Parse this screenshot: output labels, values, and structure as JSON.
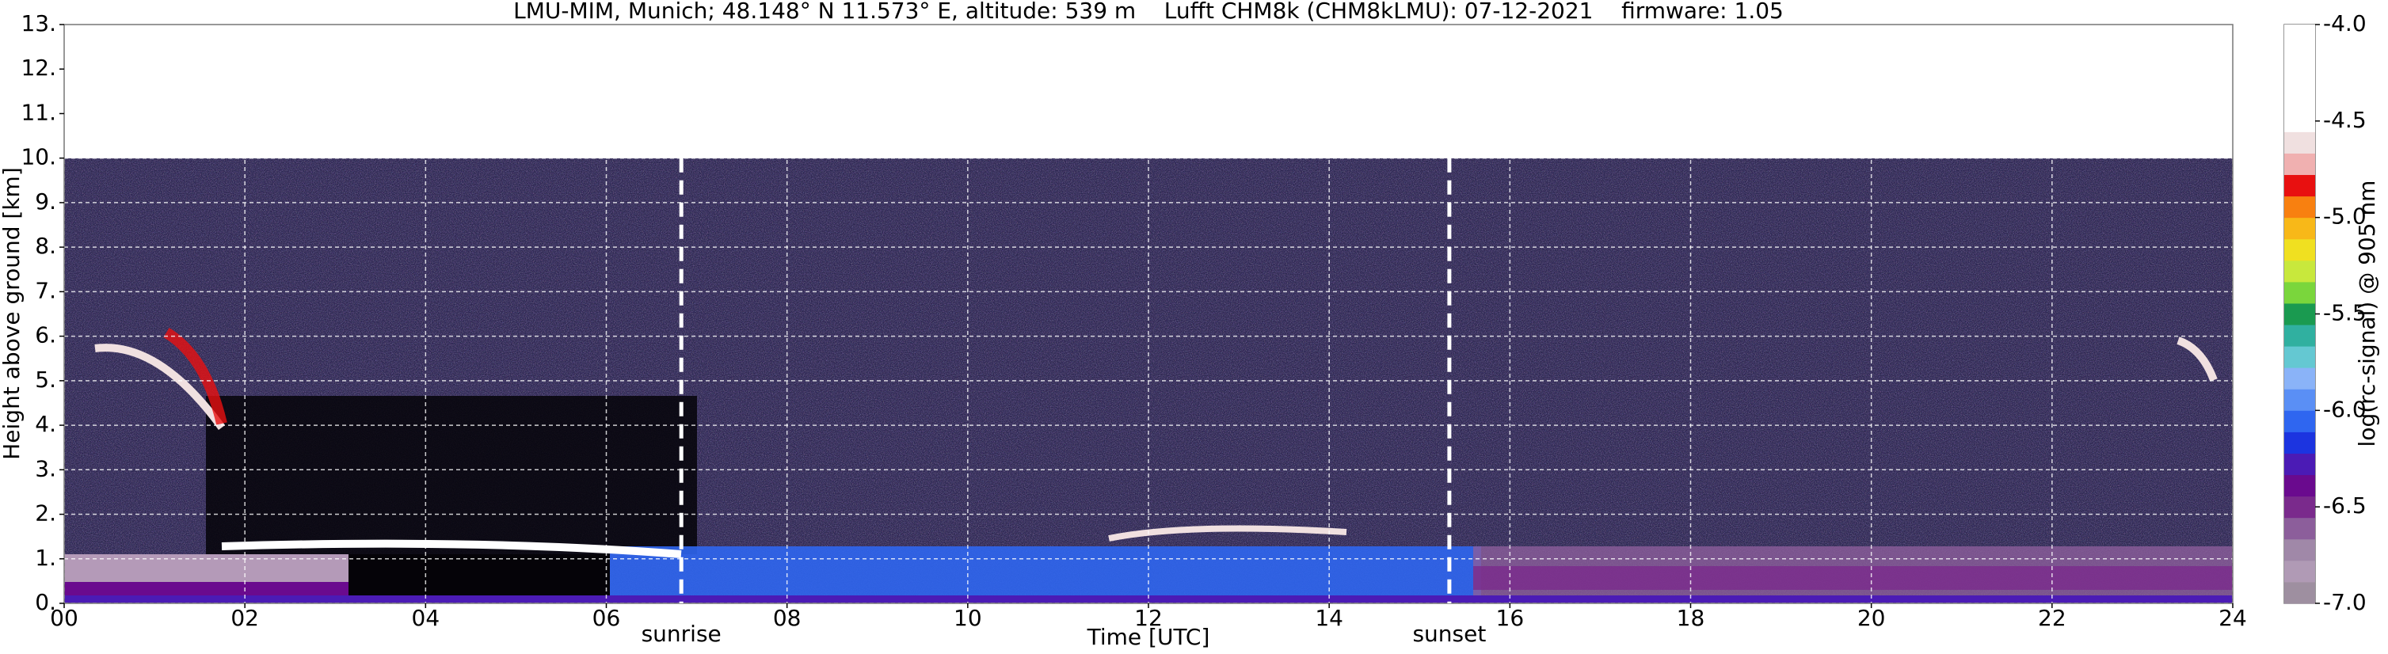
{
  "chart_data": {
    "type": "heatmap",
    "title": "LMU-MIM, Munich; 48.148° N 11.573° E, altitude: 539 m    Lufft CHM8k (CHM8kLMU): 07-12-2021    firmware: 1.05",
    "x_label": "Time [UTC]",
    "y_label": "Height above ground [km]",
    "xlim": [
      0,
      24
    ],
    "xticks": [
      {
        "value": 0,
        "label": "00"
      },
      {
        "value": 2,
        "label": "02"
      },
      {
        "value": 4,
        "label": "04"
      },
      {
        "value": 6,
        "label": "06"
      },
      {
        "value": 8,
        "label": "08"
      },
      10,
      12,
      14,
      16,
      18,
      20,
      22,
      24
    ],
    "ylim": [
      0,
      13
    ],
    "yticks": [
      {
        "value": 0,
        "label": "0."
      },
      {
        "value": 1,
        "label": "1."
      },
      {
        "value": 2,
        "label": "2."
      },
      {
        "value": 3,
        "label": "3."
      },
      {
        "value": 4,
        "label": "4."
      },
      {
        "value": 5,
        "label": "5."
      },
      {
        "value": 6,
        "label": "6."
      },
      {
        "value": 7,
        "label": "7."
      },
      {
        "value": 8,
        "label": "8."
      },
      {
        "value": 9,
        "label": "9."
      },
      {
        "value": 10,
        "label": "10."
      },
      {
        "value": 11,
        "label": "11."
      },
      {
        "value": 12,
        "label": "12."
      },
      {
        "value": 13,
        "label": "13."
      }
    ],
    "grid": true,
    "annotations": [
      {
        "text": "sunrise",
        "x": 6.83
      },
      {
        "text": "sunset",
        "x": 15.33
      }
    ],
    "colorbar": {
      "label": "log(rc-signal) @ 905 nm",
      "clim": [
        -7,
        -4
      ],
      "ticks": [
        {
          "value": -4,
          "label": "-4.0"
        },
        {
          "value": -4.5,
          "label": "-4.5"
        },
        {
          "value": -5,
          "label": "-5.0"
        },
        {
          "value": -5.5,
          "label": "-5.5"
        },
        {
          "value": -6,
          "label": "-6.0"
        },
        {
          "value": -6.5,
          "label": "-6.5"
        },
        {
          "value": -7,
          "label": "-7.0"
        }
      ],
      "colors": [
        "#9e8fa0",
        "#b09ab5",
        "#a088a8",
        "#8c5e9b",
        "#7a2a8c",
        "#6a0a8e",
        "#4b1bb5",
        "#1c34e0",
        "#2f66f0",
        "#5a8ff5",
        "#8ab3f8",
        "#64c8d2",
        "#30b0a0",
        "#1a9a50",
        "#7ad63c",
        "#c8e83c",
        "#f0e020",
        "#f8b818",
        "#f88010",
        "#e81010",
        "#f0b0b0",
        "#f0e0e0",
        "#ffffff",
        "#ffffff",
        "#ffffff",
        "#ffffff",
        "#ffffff"
      ]
    }
  }
}
